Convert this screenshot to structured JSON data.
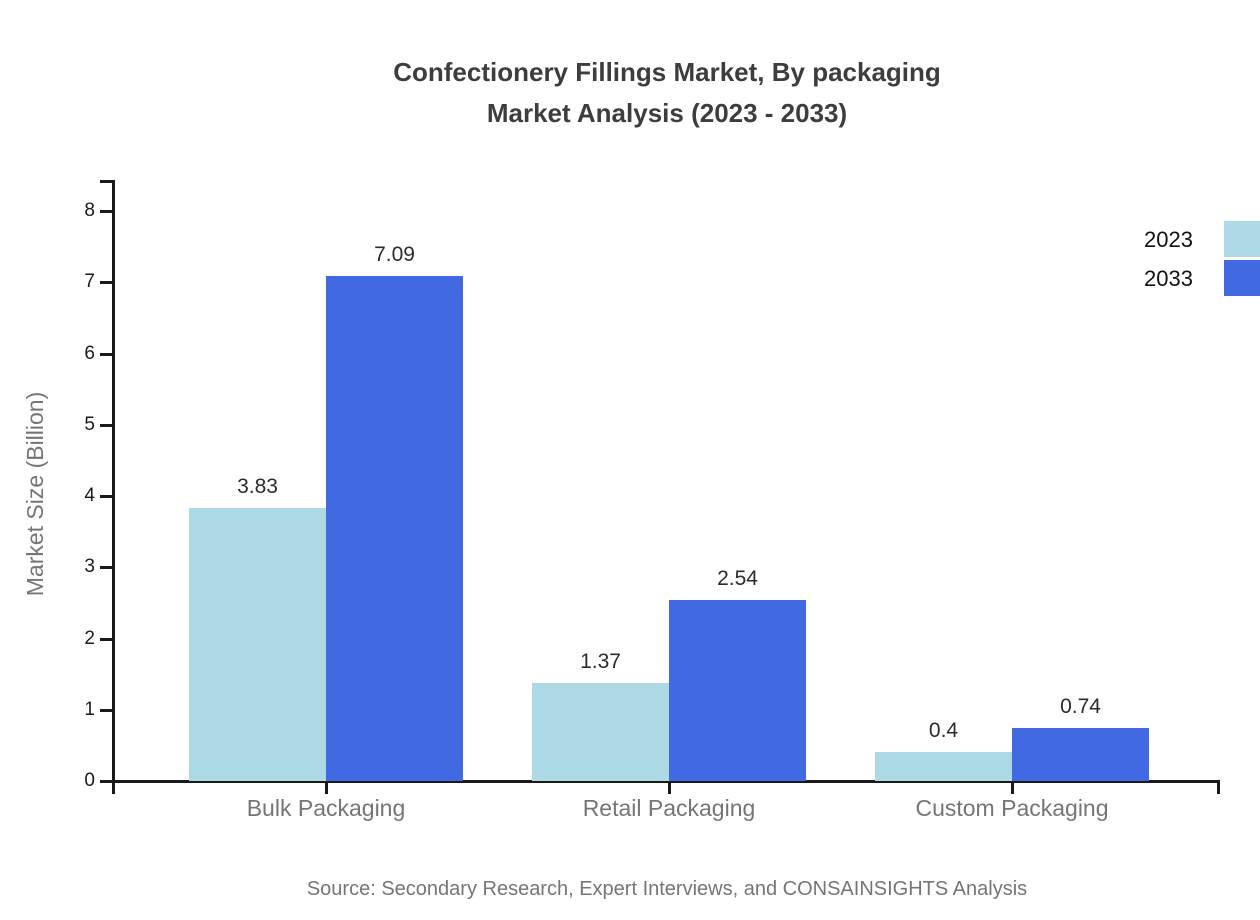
{
  "chart_data": {
    "type": "bar",
    "title_lines": [
      "Confectionery Fillings Market, By packaging",
      "Market Analysis (2023 - 2033)"
    ],
    "categories": [
      "Bulk Packaging",
      "Retail Packaging",
      "Custom Packaging"
    ],
    "series": [
      {
        "name": "2023",
        "color": "#ADD8E6",
        "values": [
          3.83,
          1.37,
          0.4
        ]
      },
      {
        "name": "2033",
        "color": "#4169E1",
        "values": [
          7.09,
          2.54,
          0.74
        ]
      }
    ],
    "xlabel": "",
    "ylabel": "Market Size (Billion)",
    "yticks": [
      0,
      1,
      2,
      3,
      4,
      5,
      6,
      7,
      8
    ],
    "ylim": [
      0,
      8.4
    ],
    "grid": false,
    "legend_position": "top-right",
    "value_labels": [
      "3.83",
      "7.09",
      "1.37",
      "2.54",
      "0.4",
      "0.74"
    ],
    "source": "Source: Secondary Research, Expert Interviews, and CONSAINSIGHTS Analysis"
  }
}
